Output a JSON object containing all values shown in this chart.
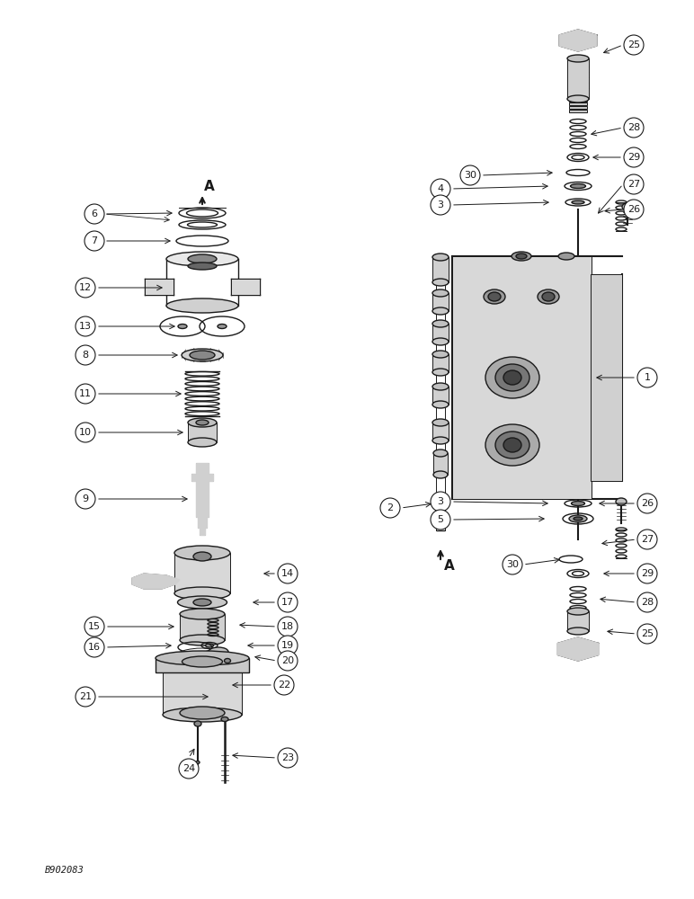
{
  "background_color": "#ffffff",
  "figure_width": 7.72,
  "figure_height": 10.0,
  "dpi": 100,
  "watermark": "B902083",
  "lw_thin": 0.7,
  "lw_med": 1.0,
  "lw_thick": 1.5,
  "fg": "#1a1a1a",
  "label_fontsize": 8.0,
  "arrow_label_fontsize": 10.0
}
